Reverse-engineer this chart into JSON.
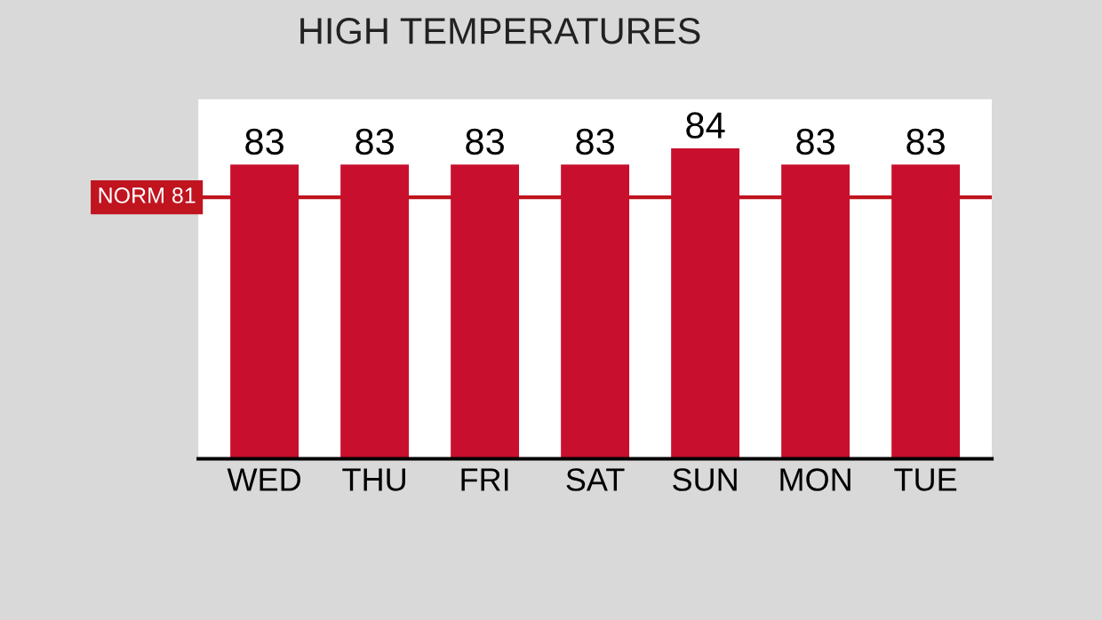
{
  "chart_data": {
    "type": "bar",
    "title": "HIGH TEMPERATURES",
    "categories": [
      "WED",
      "THU",
      "FRI",
      "SAT",
      "SUN",
      "MON",
      "TUE"
    ],
    "values": [
      83,
      83,
      83,
      83,
      84,
      83,
      83
    ],
    "color": "#c8102e",
    "data_labels": true,
    "ylim": [
      65,
      87
    ],
    "grid": false,
    "legend": false,
    "ref_lines": [
      {
        "axis": "y",
        "value": 81,
        "label": "NORM 81",
        "color": "#c0141f"
      }
    ]
  }
}
